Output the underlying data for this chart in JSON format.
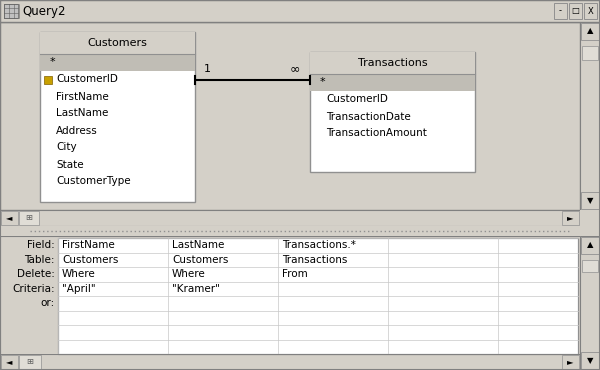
{
  "title": "Query2",
  "bg_color": "#d4d0c8",
  "upper_bg": "#c8c8c8",
  "white": "#ffffff",
  "header_bg": "#d4d0c8",
  "sel_bg": "#b8b8b8",
  "border_color": "#a0a0a0",
  "customers_table": {
    "title": "Customers",
    "fields_below_star": [
      "CustomerID",
      "FirstName",
      "LastName",
      "Address",
      "City",
      "State",
      "CustomerType"
    ]
  },
  "transactions_table": {
    "title": "Transactions",
    "fields_below_star": [
      "CustomerID",
      "TransactionDate",
      "TransactionAmount"
    ]
  },
  "grid_rows": [
    "Field:",
    "Table:",
    "Delete:",
    "Criteria:",
    "or:"
  ],
  "grid_data": [
    [
      "FirstName",
      "LastName",
      "Transactions.*",
      "",
      ""
    ],
    [
      "Customers",
      "Customers",
      "Transactions",
      "",
      ""
    ],
    [
      "Where",
      "Where",
      "From",
      "",
      ""
    ],
    [
      "\"April\"",
      "\"Kramer\"",
      "",
      "",
      ""
    ],
    [
      "",
      "",
      "",
      "",
      ""
    ],
    [
      "",
      "",
      "",
      "",
      ""
    ],
    [
      "",
      "",
      "",
      "",
      ""
    ]
  ]
}
